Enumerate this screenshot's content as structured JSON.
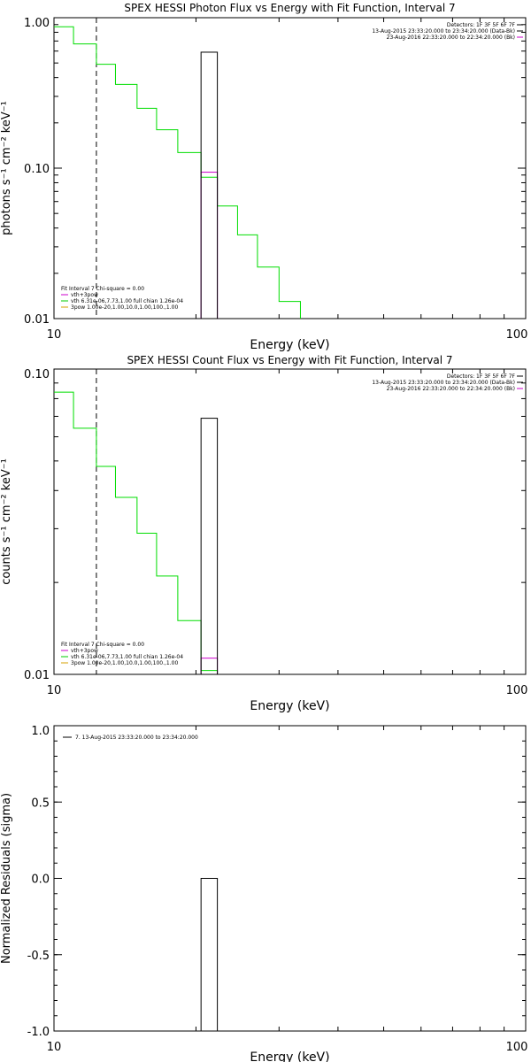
{
  "chart_data": [
    {
      "type": "line",
      "title": "SPEX HESSI Photon Flux vs Energy with Fit Function, Interval 7",
      "xlabel": "Energy (keV)",
      "ylabel": "photons s⁻¹ cm⁻² keV⁻¹",
      "xscale": "log",
      "yscale": "log",
      "xlim": [
        10,
        100
      ],
      "ylim": [
        0.01,
        1.0
      ],
      "x_ticks": [
        "10",
        "100"
      ],
      "y_ticks": [
        "0.01",
        "0.10",
        "1.00"
      ],
      "vline_x": 12.3,
      "info_text": [
        "Detectors: 1F 3F 5F 6F 7F",
        "13-Aug-2015 23:33:20.000 to 23:34:20.000 (Data-Bk)",
        "23-Aug-2016 22:33:20.000 to 22:34:20.000 (Bk)"
      ],
      "info_colors": [
        "#000000",
        "#000000",
        "#cc00cc"
      ],
      "fit_text": [
        "Fit Interval 7   Chi-square = 0.00",
        "vth+3pow",
        "vth 6.31e-06,7.73,1.00   full chian 1.26e-04",
        "3pow 1.00e-20,1.00,10.0,1.00,100.,1.00"
      ],
      "fit_colors": [
        "#000000",
        "#cc00cc",
        "#00cc00",
        "#d4a000"
      ],
      "series": [
        {
          "name": "vth",
          "color": "#00dd00",
          "step_x": [
            10,
            11,
            12.3,
            13.5,
            15,
            16.5,
            18.3,
            20.5,
            22.2,
            24.5,
            27,
            30,
            33.3
          ],
          "step_y": [
            0.87,
            0.67,
            0.49,
            0.36,
            0.25,
            0.18,
            0.127,
            0.087,
            0.056,
            0.036,
            0.022,
            0.013
          ]
        },
        {
          "name": "vth+3pow",
          "color": "#cc00cc",
          "boxes": [
            {
              "x0": 20.5,
              "x1": 22.2,
              "y": 0.094,
              "y_from": 0.01
            }
          ]
        },
        {
          "name": "Data-Bk",
          "color": "#000000",
          "boxes": [
            {
              "x0": 20.5,
              "x1": 22.2,
              "y": 0.59,
              "y_from": 0.01
            }
          ]
        }
      ]
    },
    {
      "type": "line",
      "title": "SPEX HESSI Count Flux vs Energy with Fit Function, Interval 7",
      "xlabel": "Energy (keV)",
      "ylabel": "counts s⁻¹ cm⁻² keV⁻¹",
      "xscale": "log",
      "yscale": "log",
      "xlim": [
        10,
        100
      ],
      "ylim": [
        0.01,
        0.1
      ],
      "x_ticks": [
        "10",
        "100"
      ],
      "y_ticks": [
        "0.01",
        "0.10"
      ],
      "vline_x": 12.3,
      "info_text": [
        "Detectors: 1F 3F 5F 6F 7F",
        "13-Aug-2015 23:33:20.000 to 23:34:20.000 (Data-Bk)",
        "23-Aug-2016 22:33:20.000 to 22:34:20.000 (Bk)"
      ],
      "info_colors": [
        "#000000",
        "#000000",
        "#cc00cc"
      ],
      "fit_text": [
        "Fit Interval 7   Chi-square = 0.00",
        "vth+3pow",
        "vth 6.31e-06,7.73,1.00   full chian 1.26e-04",
        "3pow 1.00e-20,1.00,10.0,1.00,100.,1.00"
      ],
      "fit_colors": [
        "#000000",
        "#cc00cc",
        "#00cc00",
        "#d4a000"
      ],
      "series": [
        {
          "name": "vth",
          "color": "#00dd00",
          "step_x": [
            10,
            11,
            12.3,
            13.5,
            15,
            16.5,
            18.3,
            20.5,
            22.2
          ],
          "step_y": [
            0.084,
            0.064,
            0.048,
            0.038,
            0.029,
            0.021,
            0.015,
            0.0103
          ]
        },
        {
          "name": "vth+3pow",
          "color": "#cc00cc",
          "boxes": [
            {
              "x0": 20.5,
              "x1": 22.2,
              "y": 0.0113,
              "y_from": 0.01
            }
          ]
        },
        {
          "name": "Data-Bk",
          "color": "#000000",
          "boxes": [
            {
              "x0": 20.5,
              "x1": 22.2,
              "y": 0.069,
              "y_from": 0.01
            }
          ]
        }
      ]
    },
    {
      "type": "bar",
      "title": "",
      "xlabel": "Energy (keV)",
      "ylabel": "Normalized Residuals (sigma)",
      "xscale": "log",
      "yscale": "linear",
      "xlim": [
        10,
        100
      ],
      "ylim": [
        -1.0,
        1.0
      ],
      "x_ticks": [
        "10",
        "100"
      ],
      "y_ticks": [
        "1.0",
        "0.5",
        "0.0",
        "-0.5",
        "-1.0"
      ],
      "info_text": [
        "7. 13-Aug-2015 23:33:20.000 to 23:34:20.000"
      ],
      "info_colors": [
        "#000000"
      ],
      "fit_text": [],
      "fit_colors": [],
      "series": [
        {
          "name": "residual",
          "color": "#000000",
          "boxes": [
            {
              "x0": 20.5,
              "x1": 22.2,
              "y": 0.0,
              "y_from": -1.0
            }
          ]
        }
      ]
    }
  ]
}
